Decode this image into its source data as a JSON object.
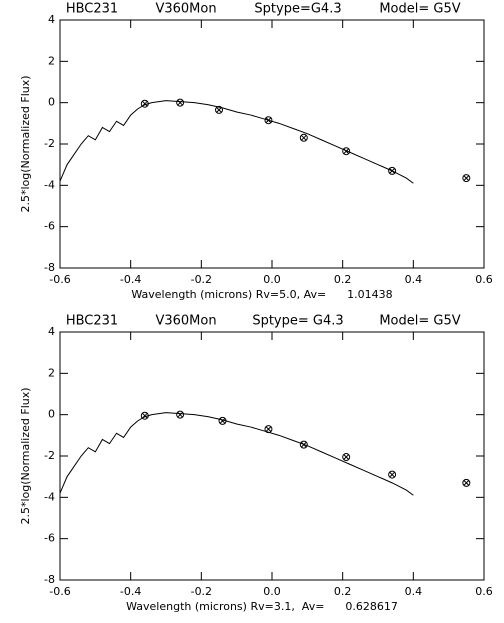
{
  "chart_data": [
    {
      "type": "line",
      "color": "#000000",
      "labels": [
        "HBC231",
        "V360Mon",
        "Sptype=G4.3",
        "Model= G5V"
      ],
      "x_label": "Wavelength (microns) Rv=5.0, Av=      1.01438",
      "y_label": "2.5*log(Normalized Flux)",
      "xlim": [
        -0.6,
        0.6
      ],
      "ylim": [
        -8,
        4
      ],
      "xticks": [
        -0.6,
        -0.4,
        -0.2,
        {
          "value": 0,
          "label": "0.0"
        },
        0.2,
        0.4,
        0.6
      ],
      "yticks": [
        -8,
        -6,
        -4,
        -2,
        0,
        2,
        4
      ],
      "line": {
        "x": [
          -0.6,
          -0.58,
          -0.56,
          -0.54,
          -0.52,
          -0.5,
          -0.48,
          -0.46,
          -0.44,
          -0.42,
          -0.4,
          -0.38,
          -0.36,
          -0.34,
          -0.3,
          -0.26,
          -0.22,
          -0.18,
          -0.14,
          -0.1,
          -0.06,
          -0.02,
          0.02,
          0.06,
          0.1,
          0.14,
          0.18,
          0.22,
          0.26,
          0.3,
          0.34,
          0.38,
          0.4
        ],
        "values": [
          -3.8,
          -3.0,
          -2.5,
          -2.0,
          -1.6,
          -1.8,
          -1.2,
          -1.4,
          -0.9,
          -1.1,
          -0.6,
          -0.3,
          -0.1,
          0.0,
          0.1,
          0.05,
          0.0,
          -0.1,
          -0.25,
          -0.45,
          -0.6,
          -0.8,
          -1.0,
          -1.25,
          -1.5,
          -1.8,
          -2.1,
          -2.4,
          -2.7,
          -3.0,
          -3.3,
          -3.65,
          -3.9
        ]
      },
      "points": {
        "x": [
          -0.36,
          -0.26,
          -0.15,
          -0.01,
          0.09,
          0.21,
          0.34,
          0.55
        ],
        "values": [
          -0.05,
          0.0,
          -0.35,
          -0.85,
          -1.7,
          -2.35,
          -3.3,
          -3.65
        ]
      }
    },
    {
      "type": "line",
      "color": "#000000",
      "labels": [
        "HBC231",
        "V360Mon",
        "Sptype= G4.3",
        "Model= G5V"
      ],
      "x_label": "Wavelength (microns) Rv=3.1,  Av=      0.628617",
      "y_label": "2.5*log(Normalized Flux)",
      "xlim": [
        -0.6,
        0.6
      ],
      "ylim": [
        -8,
        4
      ],
      "xticks": [
        -0.6,
        -0.4,
        -0.2,
        {
          "value": 0,
          "label": "0.0"
        },
        0.2,
        0.4,
        0.6
      ],
      "yticks": [
        -8,
        -6,
        -4,
        -2,
        0,
        2,
        4
      ],
      "line": {
        "x": [
          -0.6,
          -0.58,
          -0.56,
          -0.54,
          -0.52,
          -0.5,
          -0.48,
          -0.46,
          -0.44,
          -0.42,
          -0.4,
          -0.38,
          -0.36,
          -0.34,
          -0.3,
          -0.26,
          -0.22,
          -0.18,
          -0.14,
          -0.1,
          -0.06,
          -0.02,
          0.02,
          0.06,
          0.1,
          0.14,
          0.18,
          0.22,
          0.26,
          0.3,
          0.34,
          0.38,
          0.4
        ],
        "values": [
          -3.8,
          -3.0,
          -2.5,
          -2.0,
          -1.6,
          -1.8,
          -1.2,
          -1.4,
          -0.9,
          -1.1,
          -0.6,
          -0.3,
          -0.1,
          0.0,
          0.1,
          0.05,
          0.0,
          -0.1,
          -0.25,
          -0.45,
          -0.6,
          -0.8,
          -1.0,
          -1.25,
          -1.5,
          -1.8,
          -2.1,
          -2.4,
          -2.7,
          -3.0,
          -3.3,
          -3.65,
          -3.9
        ]
      },
      "points": {
        "x": [
          -0.36,
          -0.26,
          -0.14,
          -0.01,
          0.09,
          0.21,
          0.34,
          0.55
        ],
        "values": [
          -0.05,
          0.0,
          -0.3,
          -0.7,
          -1.45,
          -2.05,
          -2.9,
          -3.3
        ]
      }
    }
  ]
}
